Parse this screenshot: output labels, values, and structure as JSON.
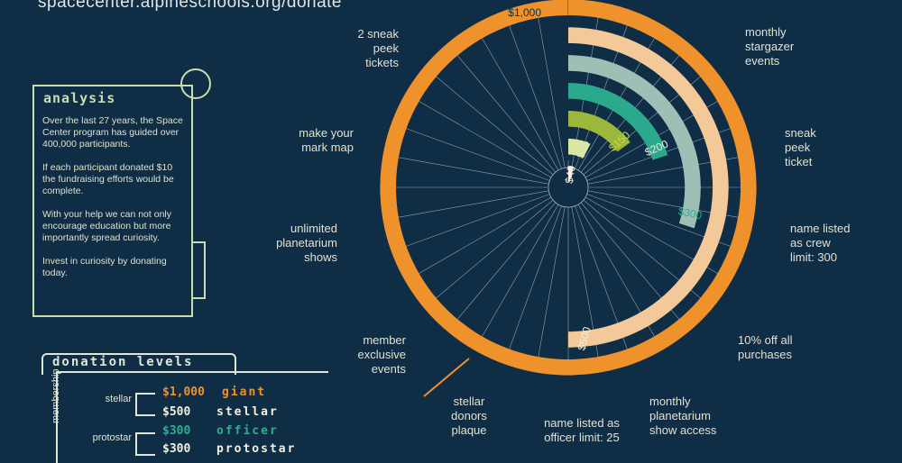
{
  "url": "spacecenter.alpineschools.org/donate",
  "analysis": {
    "title": "analysis",
    "paragraphs": [
      "Over the last 27 years, the Space Center program has guided over 400,000 participants.",
      "If each participant donated $10 the fundraising efforts would be complete.",
      "With your help we can not only encourage education but more importantly spread curiosity.",
      "Invest in curiosity by donating today."
    ]
  },
  "benefits": {
    "monthly_stargazer": "monthly stargazer events",
    "sneak_peek_ticket": "sneak peek ticket",
    "crew_listing": "name listed as crew limit: 300",
    "ten_percent": "10% off all purchases",
    "planetarium_show": "monthly planetarium show access",
    "officer_listing": "name listed as officer limit: 25",
    "donors_plaque": "stellar donors plaque",
    "member_events": "member exclusive events",
    "unlimited_shows": "unlimited planetarium shows",
    "mark_map": "make your mark map",
    "two_sneak_peek": "2 sneak peek tickets"
  },
  "levels": {
    "title": "donation levels",
    "membership_label": "membership",
    "tiers": {
      "stellar": "stellar",
      "protostar": "protostar"
    },
    "rows": [
      {
        "amount": "$1,000",
        "name": "giant",
        "color": "#f0922b"
      },
      {
        "amount": "$500",
        "name": "stellar",
        "color": "#f3f0dd"
      },
      {
        "amount": "$300",
        "name": "officer",
        "color": "#2bb08f"
      },
      {
        "amount": "$300",
        "name": "protostar",
        "color": "#f3f0dd"
      }
    ]
  },
  "chart_data": {
    "type": "radial bar",
    "categories": [
      "$40",
      "$75",
      "$150",
      "$200",
      "$300",
      "$500",
      "$1,000"
    ],
    "values": [
      40,
      75,
      150,
      200,
      300,
      500,
      1000
    ],
    "max_value": 1000,
    "colors": {
      "$40": "#fbf6e6",
      "$75": "#d9e7a6",
      "$150": "#9bb83a",
      "$200": "#2aa98c",
      "$300": "#9fbfb6",
      "$500": "#f3c99a",
      "$1,000": "#f0922b"
    },
    "label_colors": {
      "$40": "#f3f0dd",
      "$75": "#d9e7a6",
      "$150": "#c8d94a",
      "$200": "#f3f0dd",
      "$300": "#2bb08f",
      "$500": "#f3f0dd",
      "$1,000": "#0f2d45"
    }
  }
}
